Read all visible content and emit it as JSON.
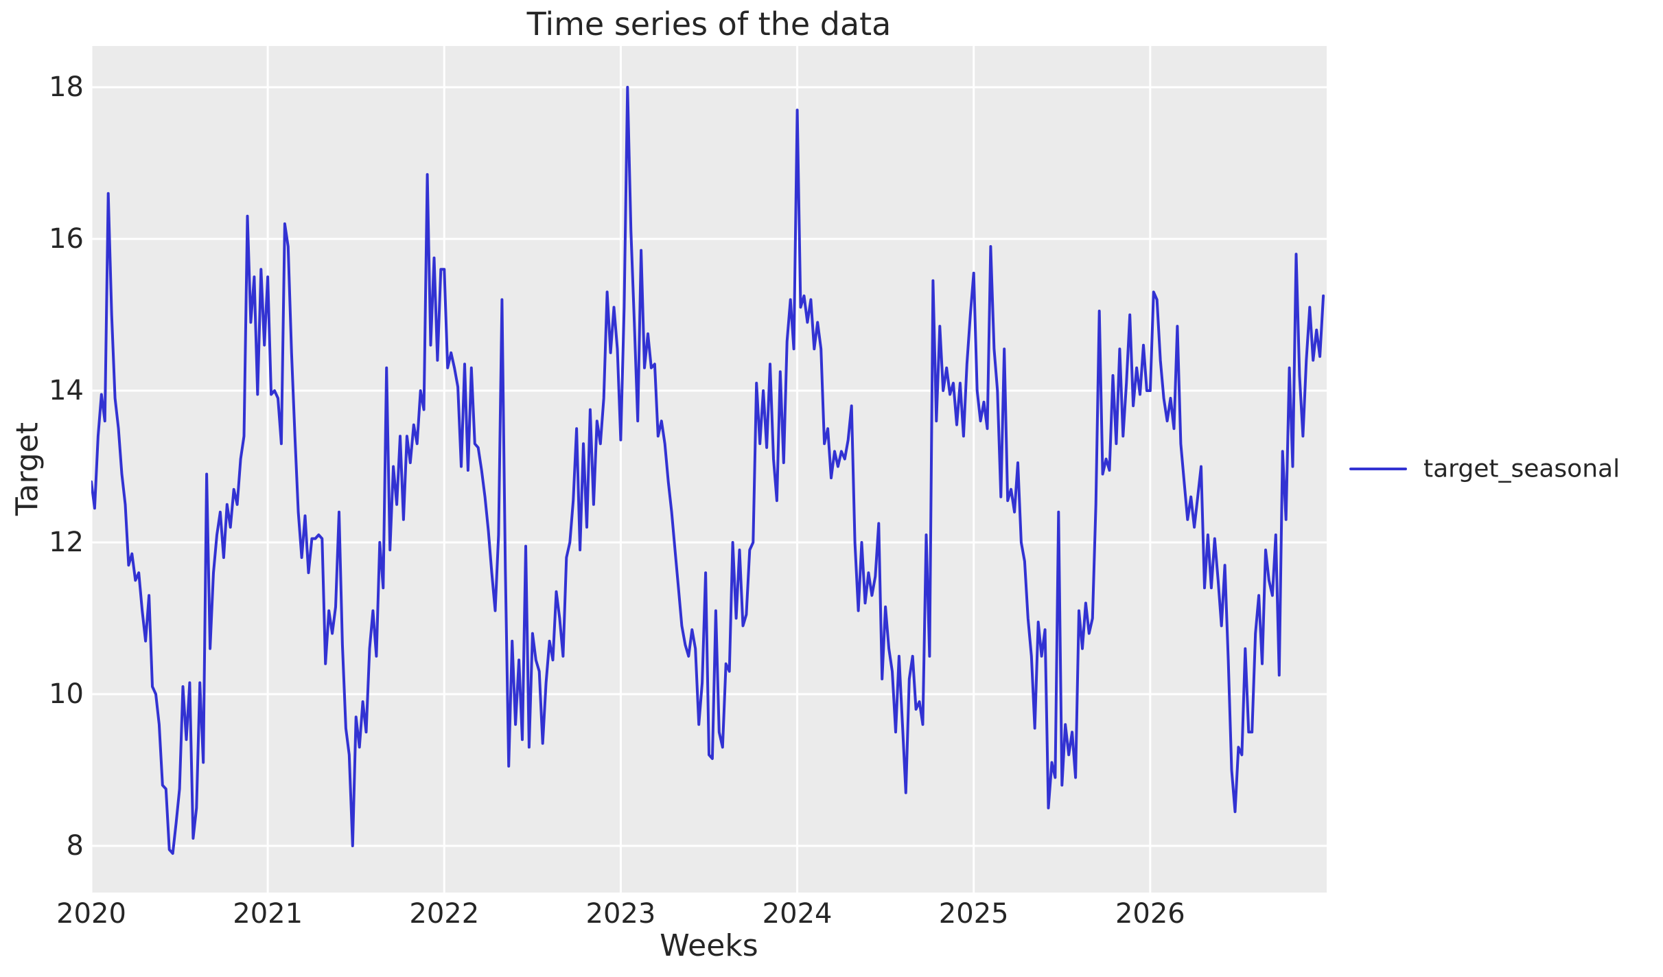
{
  "chart_data": {
    "type": "line",
    "title": "Time series of the data",
    "xlabel": "Weeks",
    "ylabel": "Target",
    "legend_position": "right-outside",
    "grid": true,
    "x_tick_labels": [
      "2020",
      "2021",
      "2022",
      "2023",
      "2024",
      "2025",
      "2026"
    ],
    "x_tick_years": [
      2020,
      2021,
      2022,
      2023,
      2024,
      2025,
      2026
    ],
    "y_ticks": [
      8,
      10,
      12,
      14,
      16,
      18
    ],
    "xlim": [
      2020.0,
      2027.0
    ],
    "ylim": [
      7.38,
      18.54
    ],
    "points_per_year": 52,
    "x_start_year": 2020,
    "colors": {
      "line": "#3232d2",
      "plot_bg": "#ebebeb",
      "grid": "#ffffff",
      "text": "#262626",
      "figure_bg": "#ffffff"
    },
    "series": [
      {
        "name": "target_seasonal",
        "color": "#3232d2",
        "values": [
          12.8,
          12.45,
          13.4,
          13.95,
          13.6,
          16.6,
          15.0,
          13.9,
          13.5,
          12.9,
          12.5,
          11.7,
          11.85,
          11.5,
          11.6,
          11.1,
          10.7,
          11.3,
          10.1,
          10.0,
          9.6,
          8.8,
          8.75,
          7.95,
          7.9,
          8.3,
          8.75,
          10.1,
          9.4,
          10.15,
          8.1,
          8.5,
          10.15,
          9.1,
          12.9,
          10.6,
          11.6,
          12.1,
          12.4,
          11.8,
          12.5,
          12.2,
          12.7,
          12.5,
          13.1,
          13.4,
          16.3,
          14.9,
          15.5,
          13.95,
          15.6,
          14.6,
          15.5,
          13.95,
          14.0,
          13.9,
          13.3,
          16.2,
          15.9,
          14.5,
          13.4,
          12.4,
          11.8,
          12.35,
          11.6,
          12.05,
          12.05,
          12.1,
          12.05,
          10.4,
          11.1,
          10.8,
          11.15,
          12.4,
          10.65,
          9.55,
          9.2,
          8.0,
          9.7,
          9.3,
          9.9,
          9.5,
          10.6,
          11.1,
          10.5,
          12.0,
          11.4,
          14.3,
          11.9,
          13.0,
          12.5,
          13.4,
          12.3,
          13.4,
          13.05,
          13.55,
          13.3,
          14.0,
          13.75,
          16.85,
          14.6,
          15.75,
          14.4,
          15.6,
          15.6,
          14.3,
          14.5,
          14.3,
          14.05,
          13.0,
          14.35,
          12.95,
          14.3,
          13.3,
          13.25,
          12.95,
          12.6,
          12.15,
          11.6,
          11.1,
          12.1,
          15.2,
          11.65,
          9.05,
          10.7,
          9.6,
          10.45,
          9.4,
          11.95,
          9.3,
          10.8,
          10.45,
          10.3,
          9.35,
          10.15,
          10.7,
          10.45,
          11.35,
          11.0,
          10.5,
          11.8,
          12.0,
          12.55,
          13.5,
          11.9,
          13.3,
          12.2,
          13.75,
          12.5,
          13.6,
          13.3,
          13.9,
          15.3,
          14.5,
          15.1,
          14.55,
          13.35,
          15.1,
          18.0,
          16.1,
          14.9,
          13.6,
          15.85,
          14.3,
          14.75,
          14.3,
          14.35,
          13.4,
          13.6,
          13.3,
          12.8,
          12.4,
          11.9,
          11.4,
          10.9,
          10.65,
          10.5,
          10.85,
          10.6,
          9.6,
          10.15,
          11.6,
          9.2,
          9.15,
          11.1,
          9.5,
          9.3,
          10.4,
          10.3,
          12.0,
          11.0,
          11.9,
          10.9,
          11.05,
          11.9,
          12.0,
          14.1,
          13.3,
          14.0,
          13.25,
          14.35,
          13.1,
          12.55,
          14.25,
          13.05,
          14.65,
          15.2,
          14.55,
          17.7,
          15.1,
          15.25,
          14.9,
          15.2,
          14.55,
          14.9,
          14.55,
          13.3,
          13.5,
          12.85,
          13.2,
          13.0,
          13.2,
          13.1,
          13.35,
          13.8,
          12.0,
          11.1,
          12.0,
          11.2,
          11.6,
          11.3,
          11.55,
          12.25,
          10.2,
          11.15,
          10.6,
          10.3,
          9.5,
          10.5,
          9.6,
          8.7,
          10.2,
          10.5,
          9.8,
          9.9,
          9.6,
          12.1,
          10.5,
          15.45,
          13.6,
          14.85,
          14.0,
          14.3,
          13.95,
          14.1,
          13.55,
          14.1,
          13.4,
          14.35,
          15.0,
          15.55,
          14.0,
          13.6,
          13.85,
          13.5,
          15.9,
          14.55,
          14.0,
          12.6,
          14.55,
          12.55,
          12.7,
          12.4,
          13.05,
          12.0,
          11.75,
          11.0,
          10.5,
          9.55,
          10.95,
          10.5,
          10.85,
          8.5,
          9.1,
          8.9,
          12.4,
          8.8,
          9.6,
          9.2,
          9.5,
          8.9,
          11.1,
          10.6,
          11.2,
          10.8,
          11.0,
          12.5,
          15.05,
          12.9,
          13.1,
          12.95,
          14.2,
          13.3,
          14.55,
          13.4,
          14.1,
          15.0,
          13.8,
          14.3,
          13.95,
          14.6,
          14.0,
          14.0,
          15.3,
          15.2,
          14.4,
          13.9,
          13.6,
          13.9,
          13.5,
          14.85,
          13.3,
          12.8,
          12.3,
          12.6,
          12.2,
          12.6,
          13.0,
          11.4,
          12.1,
          11.4,
          12.05,
          11.5,
          10.9,
          11.7,
          10.45,
          9.0,
          8.45,
          9.3,
          9.2,
          10.6,
          9.5,
          9.5,
          10.8,
          11.3,
          10.4,
          11.9,
          11.5,
          11.3,
          12.1,
          10.25,
          13.2,
          12.3,
          14.3,
          13.0,
          15.8,
          14.2,
          13.4,
          14.4,
          15.1,
          14.4,
          14.8,
          14.45,
          15.25
        ]
      }
    ]
  }
}
